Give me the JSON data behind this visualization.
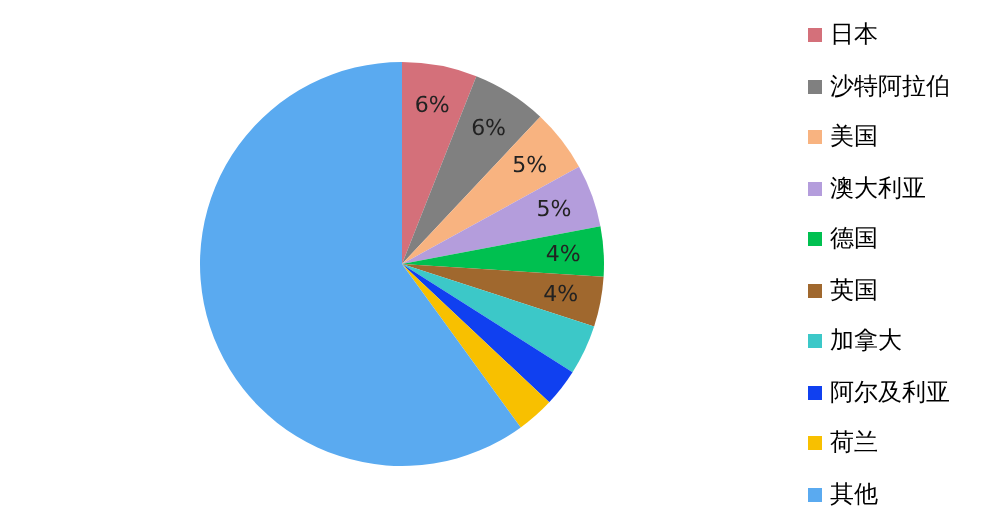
{
  "chart_data": {
    "type": "pie",
    "categories": [
      "日本",
      "沙特阿拉伯",
      "美国",
      "澳大利亚",
      "德国",
      "英国",
      "加拿大",
      "阿尔及利亚",
      "荷兰",
      "其他"
    ],
    "values": [
      6,
      6,
      5,
      5,
      4,
      4,
      4,
      3,
      3,
      60
    ],
    "value_labels": [
      "6%",
      "6%",
      "5%",
      "5%",
      "4%",
      "4%",
      null,
      null,
      null,
      null
    ],
    "colors": [
      "#d4707a",
      "#808080",
      "#f8b380",
      "#b49ddc",
      "#00c050",
      "#a0682e",
      "#3cc8c8",
      "#1040f0",
      "#f8c000",
      "#5aaaf0"
    ],
    "legend": "right"
  }
}
